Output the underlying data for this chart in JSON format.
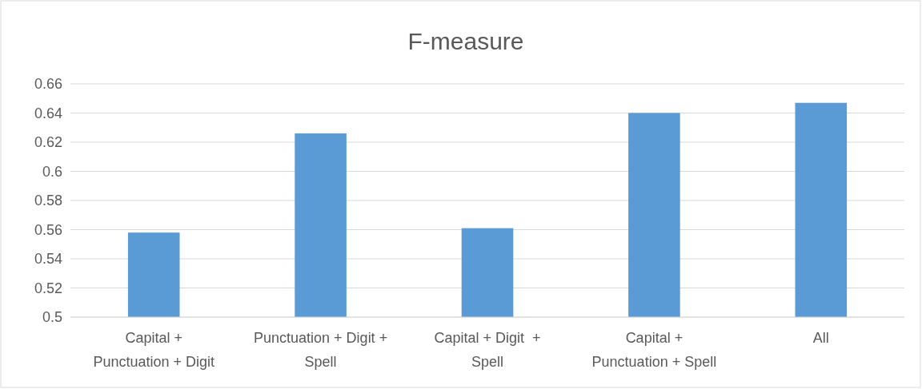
{
  "chart_data": {
    "type": "bar",
    "title": "F-measure",
    "categories": [
      "Capital +\nPunctuation + Digit",
      "Punctuation + Digit +\nSpell",
      "Capital + Digit  +\nSpell",
      "Capital +\nPunctuation + Spell",
      "All"
    ],
    "values": [
      0.558,
      0.626,
      0.561,
      0.64,
      0.647
    ],
    "color": "#5b9bd5",
    "ylim": [
      0.5,
      0.66
    ],
    "yticks": [
      0.5,
      0.52,
      0.54,
      0.56,
      0.58,
      0.6,
      0.62,
      0.64,
      0.66
    ],
    "grid": "y"
  }
}
